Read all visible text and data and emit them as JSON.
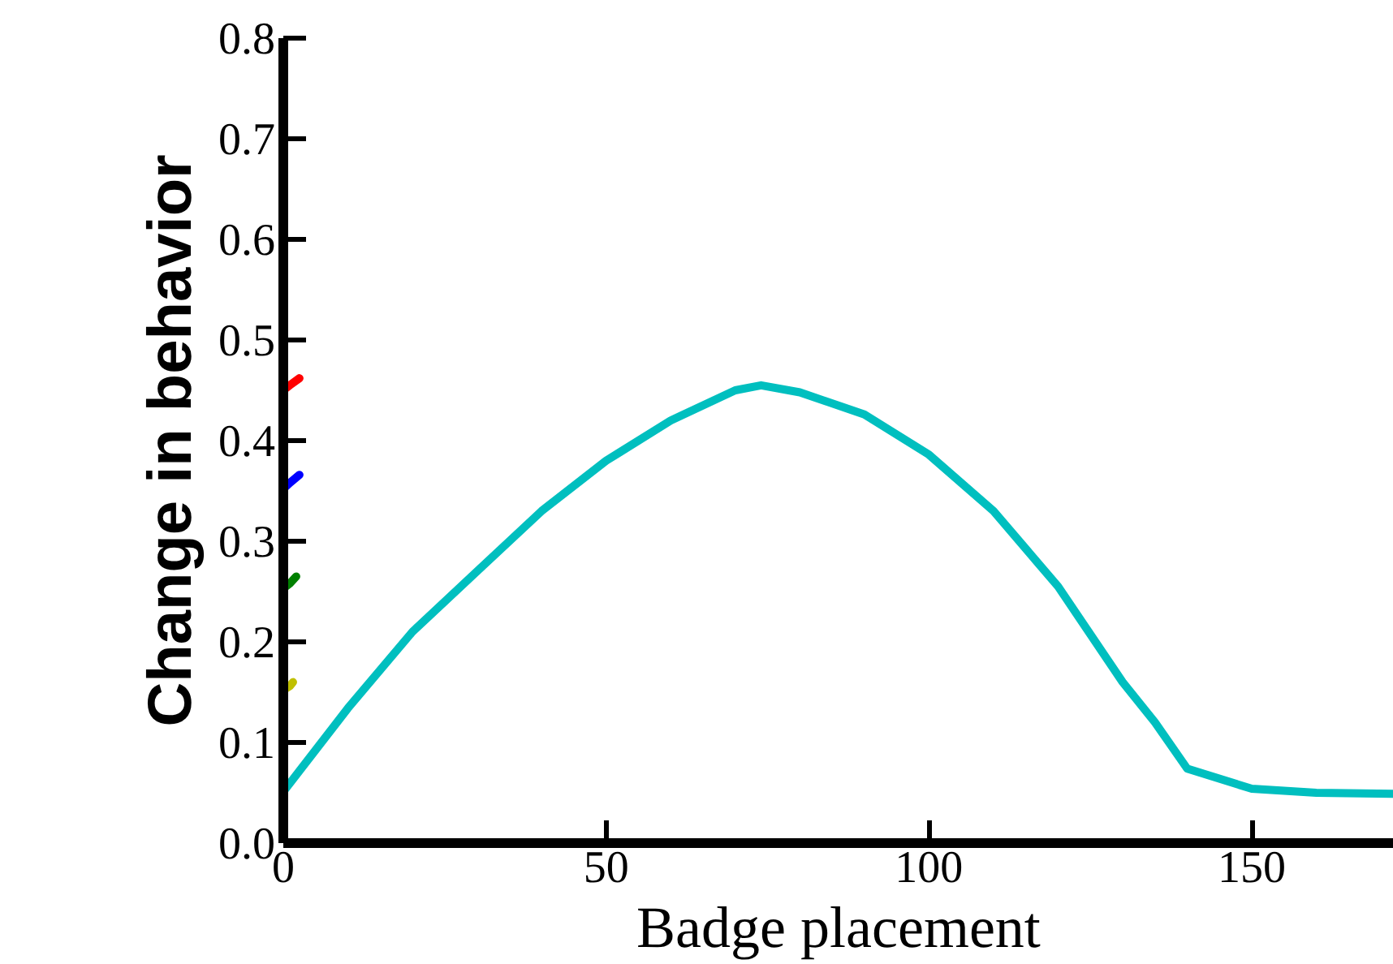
{
  "chart_data": {
    "type": "line",
    "xlabel": "Badge placement",
    "ylabel": "Change in behavior",
    "xlim": [
      0,
      172
    ],
    "ylim": [
      0,
      0.8
    ],
    "xticks": [
      0,
      50,
      100,
      150
    ],
    "yticks": [
      {
        "value": 0,
        "label": "0.0"
      },
      0.1,
      0.2,
      0.3,
      0.4,
      0.5,
      0.6,
      0.7,
      0.8
    ],
    "grid": false,
    "line_style": "solid",
    "series": [
      {
        "color": "#ff0000",
        "x": [
          0,
          1,
          2.5
        ],
        "values": [
          0.45,
          0.455,
          0.462
        ]
      },
      {
        "color": "#0000ff",
        "x": [
          0,
          1,
          2.5
        ],
        "values": [
          0.352,
          0.358,
          0.366
        ]
      },
      {
        "color": "#008000",
        "x": [
          0,
          1,
          2
        ],
        "values": [
          0.253,
          0.258,
          0.265
        ]
      },
      {
        "color": "#bfbf00",
        "x": [
          0,
          1,
          1.5
        ],
        "values": [
          0.152,
          0.156,
          0.16
        ]
      },
      {
        "color": "#00bfbf",
        "x": [
          0,
          10,
          20,
          30,
          40,
          50,
          60,
          70,
          74,
          80,
          90,
          100,
          110,
          120,
          130,
          135,
          140,
          150,
          160,
          172
        ],
        "values": [
          0.051,
          0.134,
          0.21,
          0.27,
          0.33,
          0.38,
          0.42,
          0.45,
          0.455,
          0.448,
          0.426,
          0.386,
          0.33,
          0.255,
          0.16,
          0.12,
          0.074,
          0.054,
          0.05,
          0.049
        ]
      }
    ]
  }
}
